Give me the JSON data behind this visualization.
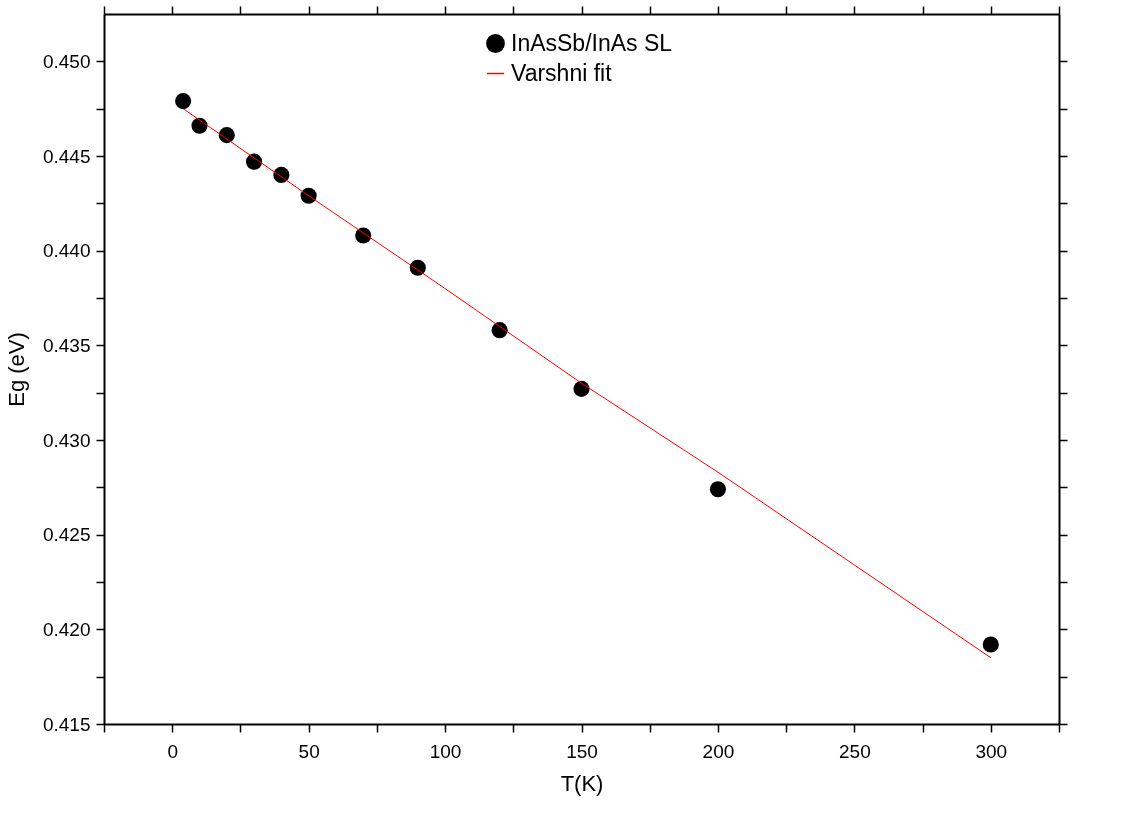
{
  "chart_data": {
    "type": "scatter",
    "xlabel": "T(K)",
    "ylabel": "Eg (eV)",
    "xlim": [
      -25,
      325
    ],
    "xticks": [
      {
        "value": -25,
        "label": null
      },
      0,
      {
        "value": 25,
        "label": null
      },
      50,
      {
        "value": 75,
        "label": null
      },
      100,
      {
        "value": 125,
        "label": null
      },
      150,
      {
        "value": 175,
        "label": null
      },
      200,
      {
        "value": 225,
        "label": null
      },
      250,
      {
        "value": 275,
        "label": null
      },
      300,
      {
        "value": 325,
        "label": null
      }
    ],
    "ylim": [
      0.415,
      0.4525
    ],
    "yticks": [
      {
        "value": 0.415,
        "label": "0.415"
      },
      {
        "value": 0.4175,
        "label": null
      },
      {
        "value": 0.42,
        "label": "0.420"
      },
      {
        "value": 0.4225,
        "label": null
      },
      {
        "value": 0.425,
        "label": "0.425"
      },
      {
        "value": 0.4275,
        "label": null
      },
      {
        "value": 0.43,
        "label": "0.430"
      },
      {
        "value": 0.4325,
        "label": null
      },
      {
        "value": 0.435,
        "label": "0.435"
      },
      {
        "value": 0.4375,
        "label": null
      },
      {
        "value": 0.44,
        "label": "0.440"
      },
      {
        "value": 0.4425,
        "label": null
      },
      {
        "value": 0.445,
        "label": "0.445"
      },
      {
        "value": 0.4475,
        "label": null
      },
      {
        "value": 0.45,
        "label": "0.450"
      }
    ],
    "grid": false,
    "legend": "top",
    "series": [
      {
        "name": "InAsSb/InAs SL",
        "marker": "circle",
        "color": "#000000",
        "x": [
          4,
          10,
          20,
          30,
          40,
          50,
          70,
          90,
          120,
          150,
          200,
          300
        ],
        "values": [
          0.4479,
          0.4466,
          0.4461,
          0.4447,
          0.444,
          0.4429,
          0.4408,
          0.4391,
          0.4358,
          0.4327,
          0.4274,
          0.4192
        ]
      },
      {
        "name": "Varshni fit",
        "type": "line",
        "line_style": "solid",
        "marker": "none",
        "color": "#ff0000",
        "x": [
          4,
          50,
          100,
          150,
          200,
          250,
          300
        ],
        "values": [
          0.4475,
          0.4429,
          0.438,
          0.433,
          0.4283,
          0.4234,
          0.4185
        ]
      }
    ]
  }
}
